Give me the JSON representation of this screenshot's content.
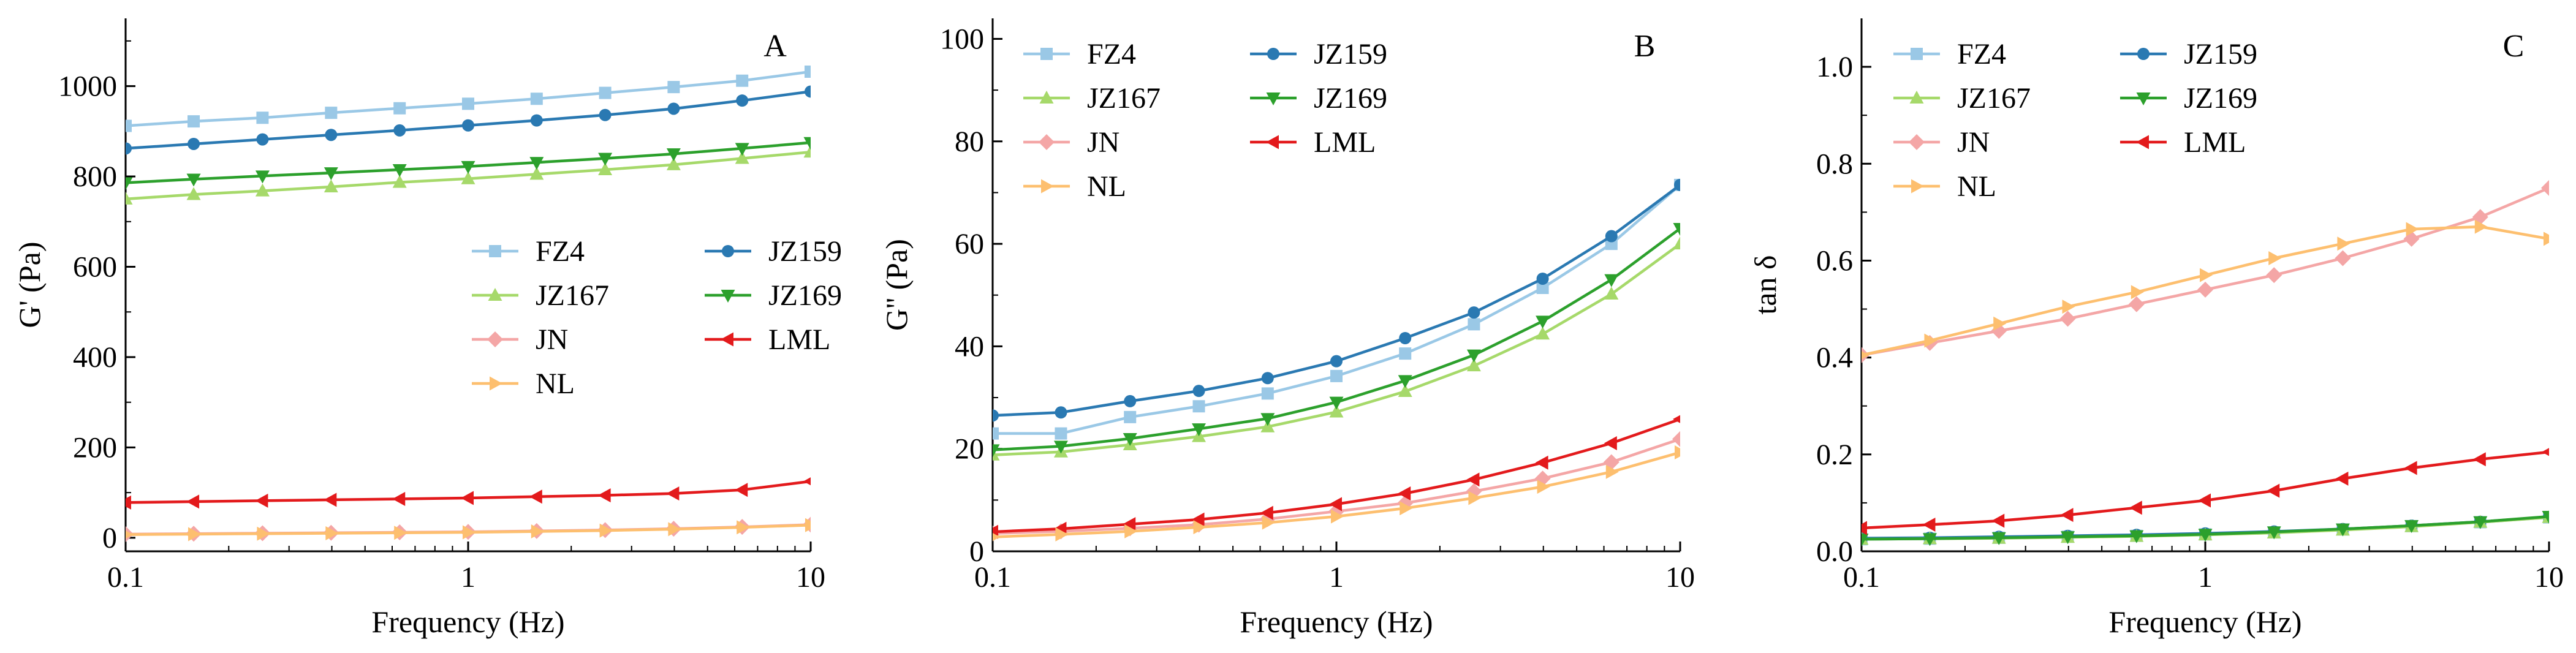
{
  "figure": {
    "panel_count": 3
  },
  "styles": {
    "FZ4": {
      "color": "#9ac8e6",
      "marker": "square"
    },
    "JZ159": {
      "color": "#2a79b2",
      "marker": "circle"
    },
    "JZ167": {
      "color": "#a6d96a",
      "marker": "triangle-up"
    },
    "JZ169": {
      "color": "#2ca02c",
      "marker": "triangle-down"
    },
    "JN": {
      "color": "#f4a6a6",
      "marker": "diamond"
    },
    "LML": {
      "color": "#e31a1c",
      "marker": "triangle-left"
    },
    "NL": {
      "color": "#fdbf6f",
      "marker": "triangle-right"
    }
  },
  "chart_data": [
    {
      "type": "line",
      "panel": "A",
      "xlabel": "Frequency (Hz)",
      "ylabel": "G' (Pa)",
      "xscale": "log",
      "xlim": [
        0.1,
        10
      ],
      "ylim": [
        -30,
        1150
      ],
      "xticks": [
        0.1,
        1,
        10
      ],
      "xtick_labels": [
        "0.1",
        "1",
        "10"
      ],
      "yticks": [
        0,
        200,
        400,
        600,
        800,
        1000
      ],
      "ytick_labels": [
        "0",
        "200",
        "400",
        "600",
        "800",
        "1000"
      ],
      "legend_position": "right-middle",
      "legend_order": [
        "FZ4",
        "JZ159",
        "JZ167",
        "JZ169",
        "JN",
        "LML",
        "NL"
      ],
      "x": [
        0.1,
        0.158,
        0.251,
        0.398,
        0.631,
        1.0,
        1.585,
        2.512,
        3.981,
        6.31,
        10.0
      ],
      "series": [
        {
          "name": "FZ4",
          "values": [
            912,
            922,
            930,
            941,
            951,
            961,
            972,
            985,
            998,
            1012,
            1032
          ]
        },
        {
          "name": "JZ159",
          "values": [
            862,
            872,
            882,
            892,
            902,
            913,
            924,
            936,
            950,
            968,
            988
          ]
        },
        {
          "name": "JZ167",
          "values": [
            750,
            760,
            768,
            777,
            787,
            795,
            805,
            815,
            826,
            840,
            854
          ]
        },
        {
          "name": "JZ169",
          "values": [
            786,
            794,
            801,
            808,
            815,
            822,
            831,
            840,
            850,
            862,
            875
          ]
        },
        {
          "name": "JN",
          "values": [
            8,
            9,
            10,
            11,
            12,
            13,
            15,
            17,
            20,
            24,
            29
          ]
        },
        {
          "name": "LML",
          "values": [
            78,
            80,
            82,
            84,
            86,
            88,
            91,
            94,
            98,
            106,
            125
          ]
        },
        {
          "name": "NL",
          "values": [
            7,
            8,
            9,
            10,
            11,
            12,
            14,
            16,
            19,
            23,
            28
          ]
        }
      ]
    },
    {
      "type": "line",
      "panel": "B",
      "xlabel": "Frequency (Hz)",
      "ylabel": "G'' (Pa)",
      "xscale": "log",
      "xlim": [
        0.1,
        10
      ],
      "ylim": [
        0,
        104
      ],
      "xticks": [
        0.1,
        1,
        10
      ],
      "xtick_labels": [
        "0.1",
        "1",
        "10"
      ],
      "yticks": [
        0,
        20,
        40,
        60,
        80,
        100
      ],
      "ytick_labels": [
        "0",
        "20",
        "40",
        "60",
        "80",
        "100"
      ],
      "legend_position": "top-left",
      "legend_order": [
        "FZ4",
        "JZ159",
        "JZ167",
        "JZ169",
        "JN",
        "LML",
        "NL"
      ],
      "x": [
        0.1,
        0.158,
        0.251,
        0.398,
        0.631,
        1.0,
        1.585,
        2.512,
        3.981,
        6.31,
        10.0
      ],
      "series": [
        {
          "name": "FZ4",
          "values": [
            23,
            23,
            26.2,
            28.3,
            30.8,
            34.2,
            38.6,
            44.3,
            51.4,
            60,
            71.5
          ]
        },
        {
          "name": "JZ159",
          "values": [
            26.5,
            27.1,
            29.3,
            31.3,
            33.8,
            37.1,
            41.6,
            46.6,
            53.2,
            61.5,
            71.5
          ]
        },
        {
          "name": "JZ167",
          "values": [
            18.8,
            19.4,
            20.8,
            22.4,
            24.3,
            27.2,
            31.2,
            36.2,
            42.4,
            50.2,
            60
          ]
        },
        {
          "name": "JZ169",
          "values": [
            19.8,
            20.5,
            22,
            23.9,
            25.9,
            29.1,
            33.3,
            38.3,
            44.9,
            53,
            63
          ]
        },
        {
          "name": "JN",
          "values": [
            3.5,
            3.9,
            4.5,
            5.2,
            6.3,
            7.8,
            9.4,
            11.7,
            14.2,
            17.4,
            21.9
          ]
        },
        {
          "name": "LML",
          "values": [
            3.8,
            4.4,
            5.3,
            6.2,
            7.5,
            9.2,
            11.3,
            14,
            17.3,
            21.1,
            25.8
          ]
        },
        {
          "name": "NL",
          "values": [
            2.8,
            3.3,
            3.9,
            4.7,
            5.6,
            6.8,
            8.4,
            10.4,
            12.6,
            15.5,
            19.3
          ]
        }
      ]
    },
    {
      "type": "line",
      "panel": "C",
      "xlabel": "Frequency (Hz)",
      "ylabel": "tan δ",
      "xscale": "log",
      "xlim": [
        0.1,
        10
      ],
      "ylim": [
        0,
        1.1
      ],
      "xticks": [
        0.1,
        1,
        10
      ],
      "xtick_labels": [
        "0.1",
        "1",
        "10"
      ],
      "yticks": [
        0,
        0.2,
        0.4,
        0.6,
        0.8,
        1.0
      ],
      "ytick_labels": [
        "0.0",
        "0.2",
        "0.4",
        "0.6",
        "0.8",
        "1.0"
      ],
      "legend_position": "top-left",
      "legend_order": [
        "FZ4",
        "JZ159",
        "JZ167",
        "JZ169",
        "JN",
        "LML",
        "NL"
      ],
      "x": [
        0.1,
        0.158,
        0.251,
        0.398,
        0.631,
        1.0,
        1.585,
        2.512,
        3.981,
        6.31,
        10.0
      ],
      "series": [
        {
          "name": "FZ4",
          "values": [
            0.025,
            0.026,
            0.028,
            0.03,
            0.032,
            0.035,
            0.039,
            0.045,
            0.052,
            0.06,
            0.07
          ]
        },
        {
          "name": "JZ159",
          "values": [
            0.027,
            0.028,
            0.03,
            0.032,
            0.034,
            0.037,
            0.041,
            0.046,
            0.053,
            0.061,
            0.071
          ]
        },
        {
          "name": "JZ167",
          "values": [
            0.025,
            0.026,
            0.027,
            0.029,
            0.031,
            0.034,
            0.038,
            0.044,
            0.051,
            0.06,
            0.07
          ]
        },
        {
          "name": "JZ169",
          "values": [
            0.025,
            0.026,
            0.028,
            0.03,
            0.032,
            0.035,
            0.04,
            0.046,
            0.053,
            0.061,
            0.072
          ]
        },
        {
          "name": "JN",
          "values": [
            0.405,
            0.43,
            0.455,
            0.48,
            0.51,
            0.54,
            0.57,
            0.605,
            0.645,
            0.69,
            0.75
          ]
        },
        {
          "name": "LML",
          "values": [
            0.048,
            0.055,
            0.063,
            0.075,
            0.09,
            0.105,
            0.125,
            0.15,
            0.172,
            0.19,
            0.205
          ]
        },
        {
          "name": "NL",
          "values": [
            0.405,
            0.435,
            0.47,
            0.505,
            0.535,
            0.57,
            0.605,
            0.635,
            0.665,
            0.67,
            0.645
          ]
        }
      ]
    }
  ]
}
